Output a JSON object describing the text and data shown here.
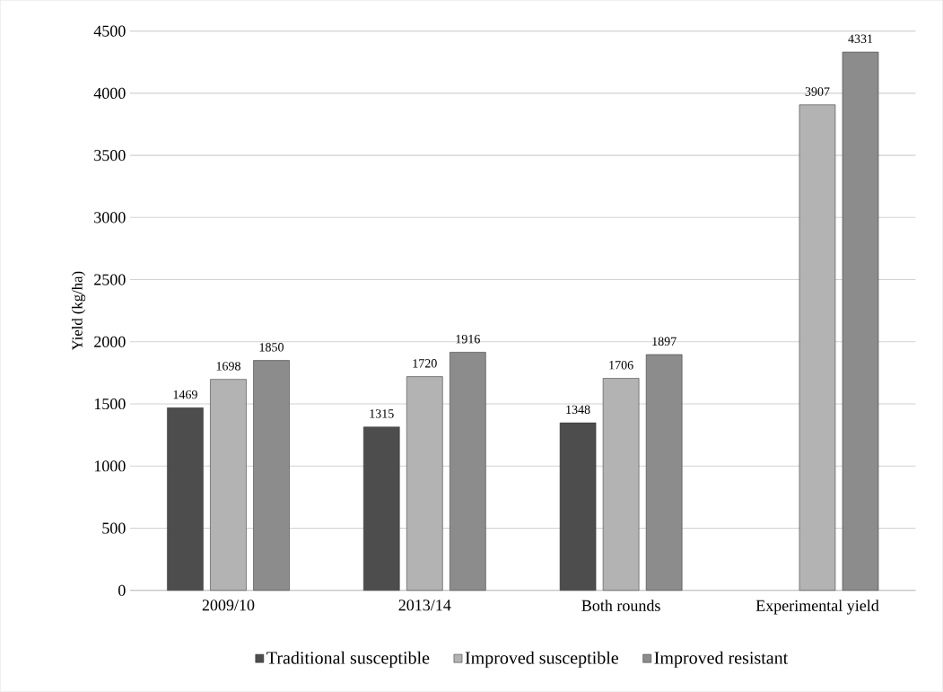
{
  "chart_data": {
    "type": "bar",
    "ylabel": "Yield (kg/ha)",
    "categories": [
      "2009/10",
      "2013/14",
      "Both rounds",
      "Experimental yield"
    ],
    "series": [
      {
        "name": "Traditional susceptible",
        "color": "#4d4d4d",
        "values": [
          1469,
          1315,
          1348,
          null
        ]
      },
      {
        "name": "Improved susceptible",
        "color": "#b3b3b3",
        "values": [
          1698,
          1720,
          1706,
          3907
        ]
      },
      {
        "name": "Improved resistant",
        "color": "#8c8c8c",
        "values": [
          1850,
          1916,
          1897,
          4331
        ]
      }
    ],
    "ylim": [
      0,
      4500
    ],
    "yticks": [
      0,
      500,
      1000,
      1500,
      2000,
      2500,
      3000,
      3500,
      4000,
      4500
    ],
    "grid": "y",
    "legend": "bottom",
    "data_labels": true
  }
}
